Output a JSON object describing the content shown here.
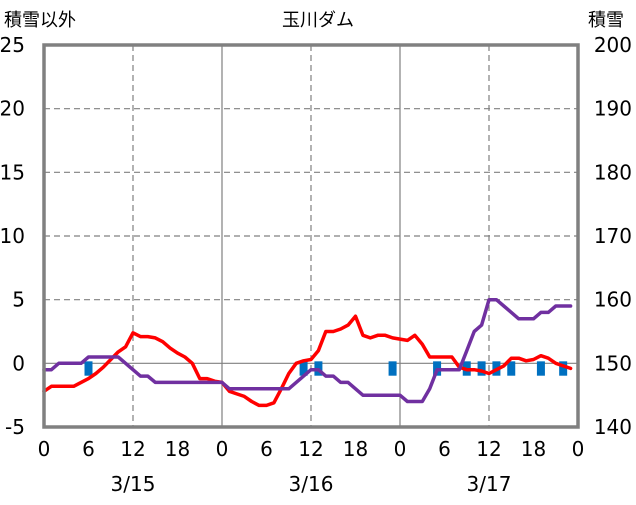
{
  "chart_data": {
    "type": "line",
    "title": "玉川ダム",
    "left_axis_label": "積雪以外",
    "right_axis_label": "積雪",
    "ylim_left": [
      -5,
      25
    ],
    "ylim_right": [
      140,
      200
    ],
    "yticks_left": [
      -5,
      0,
      5,
      10,
      15,
      20,
      25
    ],
    "yticks_right": [
      140,
      150,
      160,
      170,
      180,
      190,
      200
    ],
    "x_range_hours": [
      0,
      72
    ],
    "x_tick_labels": [
      "0",
      "6",
      "12",
      "18",
      "0",
      "6",
      "12",
      "18",
      "0",
      "6",
      "12",
      "18",
      "0"
    ],
    "date_labels": [
      {
        "label": "3/15",
        "hour": 12
      },
      {
        "label": "3/16",
        "hour": 36
      },
      {
        "label": "3/17",
        "hour": 60
      }
    ],
    "grid": true,
    "colors": {
      "series_red": "#ff0000",
      "series_purple": "#7030a0",
      "bars": "#0070c0",
      "grid": "#808080",
      "frame": "#808080"
    },
    "series": [
      {
        "axis": "left",
        "color": "#ff0000",
        "points": [
          [
            0,
            -2.2
          ],
          [
            1,
            -1.8
          ],
          [
            2,
            -1.8
          ],
          [
            3,
            -1.8
          ],
          [
            4,
            -1.8
          ],
          [
            5,
            -1.5
          ],
          [
            6,
            -1.2
          ],
          [
            7,
            -0.8
          ],
          [
            8,
            -0.3
          ],
          [
            9,
            0.3
          ],
          [
            10,
            0.9
          ],
          [
            11,
            1.3
          ],
          [
            12,
            2.4
          ],
          [
            13,
            2.1
          ],
          [
            14,
            2.1
          ],
          [
            15,
            2.0
          ],
          [
            16,
            1.7
          ],
          [
            17,
            1.2
          ],
          [
            18,
            0.8
          ],
          [
            19,
            0.5
          ],
          [
            20,
            0.0
          ],
          [
            21,
            -1.2
          ],
          [
            22,
            -1.2
          ],
          [
            23,
            -1.4
          ],
          [
            24,
            -1.5
          ],
          [
            25,
            -2.2
          ],
          [
            26,
            -2.4
          ],
          [
            27,
            -2.6
          ],
          [
            28,
            -3.0
          ],
          [
            29,
            -3.3
          ],
          [
            30,
            -3.3
          ],
          [
            31,
            -3.1
          ],
          [
            32,
            -2.0
          ],
          [
            33,
            -0.8
          ],
          [
            34,
            0.0
          ],
          [
            35,
            0.2
          ],
          [
            36,
            0.3
          ],
          [
            37,
            1.0
          ],
          [
            38,
            2.5
          ],
          [
            39,
            2.5
          ],
          [
            40,
            2.7
          ],
          [
            41,
            3.0
          ],
          [
            42,
            3.7
          ],
          [
            43,
            2.2
          ],
          [
            44,
            2.0
          ],
          [
            45,
            2.2
          ],
          [
            46,
            2.2
          ],
          [
            47,
            2.0
          ],
          [
            48,
            1.9
          ],
          [
            49,
            1.8
          ],
          [
            50,
            2.2
          ],
          [
            51,
            1.5
          ],
          [
            52,
            0.5
          ],
          [
            53,
            0.5
          ],
          [
            54,
            0.5
          ],
          [
            55,
            0.5
          ],
          [
            56,
            -0.3
          ],
          [
            57,
            -0.5
          ],
          [
            58,
            -0.5
          ],
          [
            59,
            -0.6
          ],
          [
            60,
            -0.8
          ],
          [
            61,
            -0.5
          ],
          [
            62,
            -0.2
          ],
          [
            63,
            0.4
          ],
          [
            64,
            0.4
          ],
          [
            65,
            0.2
          ],
          [
            66,
            0.3
          ],
          [
            67,
            0.6
          ],
          [
            68,
            0.4
          ],
          [
            69,
            0.0
          ],
          [
            70,
            -0.2
          ],
          [
            71,
            -0.4
          ]
        ]
      },
      {
        "axis": "left",
        "color": "#7030a0",
        "points": [
          [
            0,
            -0.5
          ],
          [
            1,
            -0.5
          ],
          [
            2,
            0.0
          ],
          [
            3,
            0.0
          ],
          [
            4,
            0.0
          ],
          [
            5,
            0.0
          ],
          [
            6,
            0.5
          ],
          [
            7,
            0.5
          ],
          [
            8,
            0.5
          ],
          [
            9,
            0.5
          ],
          [
            10,
            0.5
          ],
          [
            11,
            0.0
          ],
          [
            12,
            -0.5
          ],
          [
            13,
            -1.0
          ],
          [
            14,
            -1.0
          ],
          [
            15,
            -1.5
          ],
          [
            16,
            -1.5
          ],
          [
            17,
            -1.5
          ],
          [
            18,
            -1.5
          ],
          [
            19,
            -1.5
          ],
          [
            20,
            -1.5
          ],
          [
            21,
            -1.5
          ],
          [
            22,
            -1.5
          ],
          [
            23,
            -1.5
          ],
          [
            24,
            -1.5
          ],
          [
            25,
            -2.0
          ],
          [
            26,
            -2.0
          ],
          [
            27,
            -2.0
          ],
          [
            28,
            -2.0
          ],
          [
            29,
            -2.0
          ],
          [
            30,
            -2.0
          ],
          [
            31,
            -2.0
          ],
          [
            32,
            -2.0
          ],
          [
            33,
            -2.0
          ],
          [
            34,
            -1.5
          ],
          [
            35,
            -1.0
          ],
          [
            36,
            -0.5
          ],
          [
            37,
            -0.5
          ],
          [
            38,
            -1.0
          ],
          [
            39,
            -1.0
          ],
          [
            40,
            -1.5
          ],
          [
            41,
            -1.5
          ],
          [
            42,
            -2.0
          ],
          [
            43,
            -2.5
          ],
          [
            44,
            -2.5
          ],
          [
            45,
            -2.5
          ],
          [
            46,
            -2.5
          ],
          [
            47,
            -2.5
          ],
          [
            48,
            -2.5
          ],
          [
            49,
            -3.0
          ],
          [
            50,
            -3.0
          ],
          [
            51,
            -3.0
          ],
          [
            52,
            -2.0
          ],
          [
            53,
            -0.5
          ],
          [
            54,
            -0.5
          ],
          [
            55,
            -0.5
          ],
          [
            56,
            -0.5
          ],
          [
            57,
            1.0
          ],
          [
            58,
            2.5
          ],
          [
            59,
            3.0
          ],
          [
            60,
            5.0
          ],
          [
            61,
            5.0
          ],
          [
            62,
            4.5
          ],
          [
            63,
            4.0
          ],
          [
            64,
            3.5
          ],
          [
            65,
            3.5
          ],
          [
            66,
            3.5
          ],
          [
            67,
            4.0
          ],
          [
            68,
            4.0
          ],
          [
            69,
            4.5
          ],
          [
            70,
            4.5
          ],
          [
            71,
            4.5
          ]
        ]
      },
      {
        "axis": "left",
        "color": "#0070c0",
        "type": "bar",
        "points": [
          [
            6,
            -0.5
          ],
          [
            35,
            -0.5
          ],
          [
            37,
            -0.5
          ],
          [
            47,
            -0.5
          ],
          [
            53,
            -0.5
          ],
          [
            57,
            -0.5
          ],
          [
            59,
            -0.5
          ],
          [
            61,
            -0.5
          ],
          [
            63,
            -0.5
          ],
          [
            67,
            -0.5
          ],
          [
            70,
            -0.5
          ]
        ]
      }
    ]
  }
}
